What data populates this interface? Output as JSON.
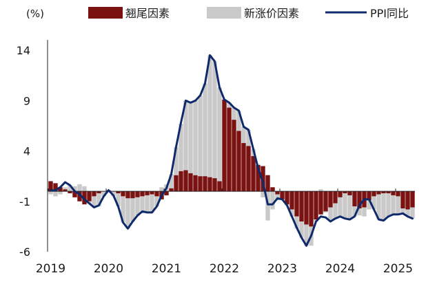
{
  "chart_data": {
    "type": "bar",
    "unit_label": "(%)",
    "ylim": [
      -6,
      14
    ],
    "y_ticks": [
      14,
      9,
      4,
      -1,
      -6
    ],
    "x_ticks": [
      "2019",
      "2020",
      "2021",
      "2022",
      "2023",
      "2024",
      "2025"
    ],
    "legend_position": "top",
    "grid": false,
    "colors": {
      "tail": "#7a1212",
      "new": "#c9c9c9",
      "line": "#0f2a6b"
    },
    "x_dates": [
      "2019-01",
      "2019-02",
      "2019-03",
      "2019-04",
      "2019-05",
      "2019-06",
      "2019-07",
      "2019-08",
      "2019-09",
      "2019-10",
      "2019-11",
      "2019-12",
      "2020-01",
      "2020-02",
      "2020-03",
      "2020-04",
      "2020-05",
      "2020-06",
      "2020-07",
      "2020-08",
      "2020-09",
      "2020-10",
      "2020-11",
      "2020-12",
      "2021-01",
      "2021-02",
      "2021-03",
      "2021-04",
      "2021-05",
      "2021-06",
      "2021-07",
      "2021-08",
      "2021-09",
      "2021-10",
      "2021-11",
      "2021-12",
      "2022-01",
      "2022-02",
      "2022-03",
      "2022-04",
      "2022-05",
      "2022-06",
      "2022-07",
      "2022-08",
      "2022-09",
      "2022-10",
      "2022-11",
      "2022-12",
      "2023-01",
      "2023-02",
      "2023-03",
      "2023-04",
      "2023-05",
      "2023-06",
      "2023-07",
      "2023-08",
      "2023-09",
      "2023-10",
      "2023-11",
      "2023-12",
      "2024-01",
      "2024-02",
      "2024-03",
      "2024-04",
      "2024-05",
      "2024-06",
      "2024-07",
      "2024-08",
      "2024-09",
      "2024-10",
      "2024-11",
      "2024-12",
      "2025-01",
      "2025-02",
      "2025-03",
      "2025-04"
    ],
    "series": [
      {
        "name": "翘尾因素",
        "kind": "bar",
        "values": [
          1.0,
          0.8,
          0.4,
          0.2,
          -0.2,
          -0.6,
          -1.0,
          -1.3,
          -1.0,
          -0.5,
          -0.2,
          0.0,
          0.1,
          0.0,
          -0.2,
          -0.5,
          -0.7,
          -0.7,
          -0.6,
          -0.5,
          -0.4,
          -0.3,
          -0.5,
          -0.8,
          -0.4,
          0.3,
          1.6,
          2.0,
          2.1,
          1.8,
          1.6,
          1.5,
          1.5,
          1.4,
          1.3,
          1.0,
          9.1,
          8.3,
          7.1,
          6.0,
          4.8,
          4.5,
          3.5,
          2.6,
          2.5,
          1.6,
          0.4,
          -0.3,
          -0.8,
          -1.3,
          -1.8,
          -2.5,
          -3.0,
          -3.3,
          -3.5,
          -2.8,
          -2.3,
          -2.0,
          -1.6,
          -1.2,
          -0.6,
          -0.2,
          -0.4,
          -1.5,
          -1.7,
          -1.6,
          -0.9,
          -0.5,
          -0.3,
          -0.2,
          -0.2,
          -0.4,
          -0.5,
          -1.7,
          -1.8,
          -1.6
        ]
      },
      {
        "name": "新涨价因素",
        "kind": "bar",
        "values": [
          -0.3,
          -0.5,
          -0.3,
          0.2,
          0.6,
          0.5,
          0.7,
          0.5,
          -0.2,
          -1.1,
          -1.3,
          -0.5,
          -0.1,
          -0.5,
          -1.3,
          -2.6,
          -3.0,
          -2.3,
          -1.8,
          -1.5,
          -1.7,
          -1.8,
          -1.0,
          0.4,
          0.7,
          1.4,
          2.8,
          4.7,
          6.9,
          7.0,
          7.4,
          8.0,
          9.2,
          12.1,
          11.6,
          9.3,
          0.0,
          0.5,
          1.2,
          2.0,
          1.6,
          1.6,
          0.7,
          0.1,
          -0.6,
          -2.9,
          -1.8,
          -0.5,
          0.0,
          -0.1,
          -0.7,
          -1.2,
          -1.6,
          -2.1,
          -1.9,
          -0.2,
          0.2,
          -0.1,
          -1.4,
          -1.5,
          -1.9,
          -2.5,
          -2.4,
          -1.0,
          -0.7,
          -0.9,
          -0.9,
          -1.3,
          -2.5,
          -2.7,
          -2.3,
          -1.9,
          -1.8,
          -0.5,
          -0.7,
          -1.1
        ]
      },
      {
        "name": "PPI同比",
        "kind": "line",
        "values": [
          0.1,
          0.1,
          0.4,
          0.9,
          0.6,
          0.0,
          -0.3,
          -0.8,
          -1.2,
          -1.6,
          -1.4,
          -0.5,
          0.1,
          -0.4,
          -1.5,
          -3.1,
          -3.7,
          -3.0,
          -2.4,
          -2.0,
          -2.1,
          -2.1,
          -1.5,
          -0.4,
          0.3,
          1.7,
          4.4,
          6.8,
          9.0,
          8.8,
          9.0,
          9.5,
          10.7,
          13.5,
          12.9,
          10.3,
          9.1,
          8.8,
          8.3,
          8.0,
          6.4,
          6.1,
          4.2,
          2.3,
          0.9,
          -1.3,
          -1.3,
          -0.7,
          -0.8,
          -1.4,
          -2.5,
          -3.6,
          -4.6,
          -5.4,
          -4.4,
          -3.0,
          -2.5,
          -2.6,
          -3.0,
          -2.7,
          -2.5,
          -2.7,
          -2.8,
          -2.5,
          -1.4,
          -0.8,
          -0.8,
          -1.8,
          -2.8,
          -2.9,
          -2.5,
          -2.3,
          -2.3,
          -2.2,
          -2.5,
          -2.7
        ]
      }
    ]
  }
}
